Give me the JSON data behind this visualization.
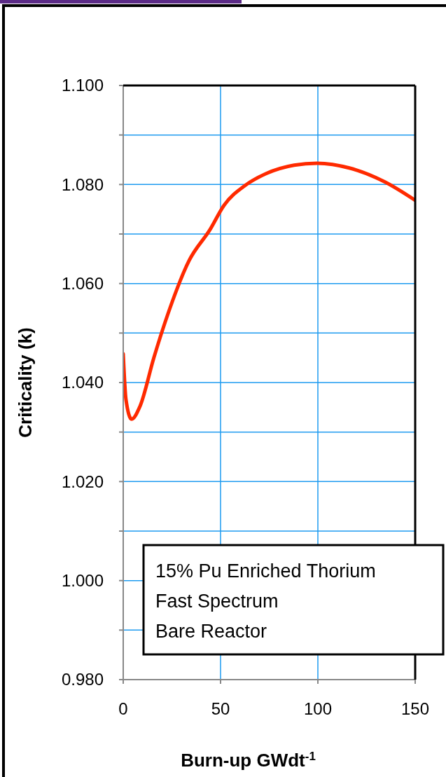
{
  "chart_data": {
    "type": "line",
    "xlabel": "Burn-up GWdt$^{-1}$",
    "ylabel": "Criticality (k)",
    "annotations": [
      "15% Pu Enriched Thorium\nFast Spectrum\nBare Reactor"
    ],
    "x": [
      0,
      1.4,
      4.3,
      8.6,
      15.8,
      23,
      33.8,
      44.6,
      51.8,
      62.6,
      73.4,
      87.8,
      99.6,
      116.5,
      134.5,
      150
    ],
    "series": [
      {
        "color": "#ff2a00",
        "values": [
          1.0458,
          1.0366,
          1.0326,
          1.0352,
          1.0451,
          1.0539,
          1.0646,
          1.0709,
          1.0758,
          1.0798,
          1.0822,
          1.0839,
          1.0843,
          1.0833,
          1.0805,
          1.0768
        ]
      }
    ],
    "xlim": [
      0,
      150
    ],
    "xticks": [
      0,
      50,
      100,
      150
    ],
    "ylim": [
      0.98,
      1.1
    ],
    "yticks": [
      {
        "value": 0.98,
        "label": "0.980"
      },
      {
        "value": 0.99,
        "label": null
      },
      {
        "value": 1.0,
        "label": "1.000"
      },
      {
        "value": 1.01,
        "label": null
      },
      {
        "value": 1.02,
        "label": "1.020"
      },
      {
        "value": 1.03,
        "label": null
      },
      {
        "value": 1.04,
        "label": "1.040"
      },
      {
        "value": 1.05,
        "label": null
      },
      {
        "value": 1.06,
        "label": "1.060"
      },
      {
        "value": 1.07,
        "label": null
      },
      {
        "value": 1.08,
        "label": "1.080"
      },
      {
        "value": 1.09,
        "label": null
      },
      {
        "value": 1.1,
        "label": "1.100"
      }
    ],
    "grid": true,
    "line_style": "solid"
  }
}
